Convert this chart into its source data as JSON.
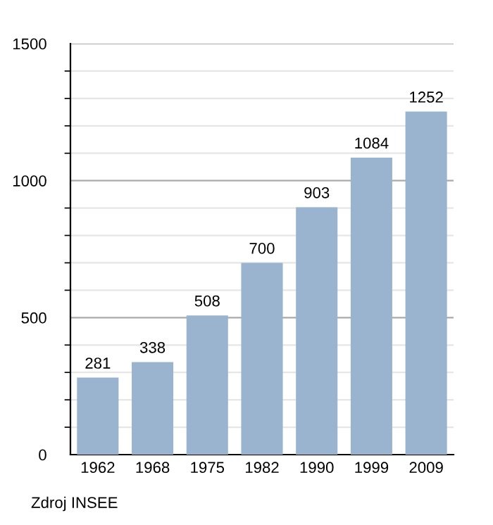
{
  "chart_data": {
    "type": "bar",
    "categories": [
      "1962",
      "1968",
      "1975",
      "1982",
      "1990",
      "1999",
      "2009"
    ],
    "values": [
      281,
      338,
      508,
      700,
      903,
      1084,
      1252
    ],
    "color": "#9ab3cf",
    "data_labels": true,
    "ylim": [
      0,
      1500
    ],
    "yticks": [
      0,
      {
        "value": 100,
        "label": null
      },
      {
        "value": 200,
        "label": null
      },
      {
        "value": 300,
        "label": null
      },
      {
        "value": 400,
        "label": null
      },
      500,
      {
        "value": 600,
        "label": null
      },
      {
        "value": 700,
        "label": null
      },
      {
        "value": 800,
        "label": null
      },
      {
        "value": 900,
        "label": null
      },
      1000,
      {
        "value": 1100,
        "label": null
      },
      {
        "value": 1200,
        "label": null
      },
      {
        "value": 1300,
        "label": null
      },
      {
        "value": 1400,
        "label": null
      },
      1500
    ],
    "grid": "y",
    "annotations": [
      "Zdroj INSEE"
    ]
  }
}
